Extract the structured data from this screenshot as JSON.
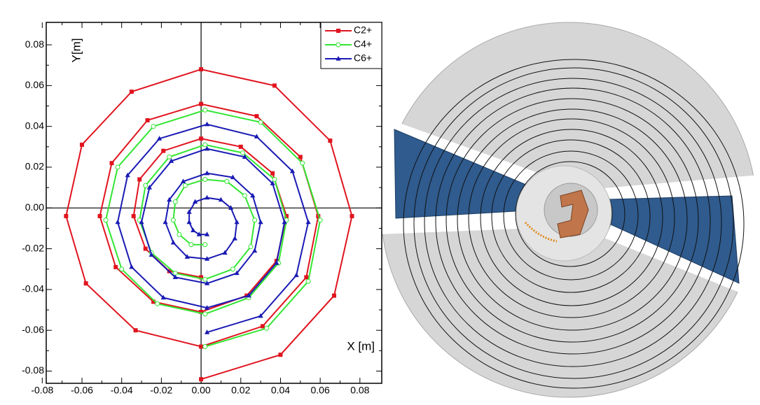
{
  "chart_data": {
    "type": "line",
    "x_label": "X [m]",
    "y_label": "Y[m]",
    "xlim": [
      -0.078,
      0.091
    ],
    "ylim": [
      -0.086,
      0.091
    ],
    "xticks": [
      -0.08,
      -0.06,
      -0.04,
      -0.02,
      {
        "value": 0,
        "label": "0.00"
      },
      0.02,
      0.04,
      0.06,
      0.08
    ],
    "yticks": [
      -0.08,
      -0.06,
      -0.04,
      -0.02,
      {
        "value": 0,
        "label": "0.00"
      },
      0.02,
      0.04,
      0.06,
      0.08
    ],
    "legend": "upper right",
    "series": [
      {
        "name": "C2+",
        "color": "#e0141e",
        "marker": "square",
        "x": [
          0,
          -0.016,
          -0.028,
          -0.034,
          -0.031,
          -0.019,
          0,
          0.02,
          0.036,
          0.043,
          0.038,
          0.023,
          0,
          -0.024,
          -0.043,
          -0.051,
          -0.045,
          -0.027,
          0,
          0.028,
          0.05,
          0.059,
          0.053,
          0.031,
          0,
          -0.033,
          -0.058,
          -0.068,
          -0.06,
          -0.035,
          0,
          0.037,
          0.065,
          0.076,
          0.067,
          0.04,
          0
        ],
        "y": [
          -0.034,
          -0.031,
          -0.02,
          -0.004,
          0.014,
          0.028,
          0.034,
          0.03,
          0.017,
          -0.004,
          -0.026,
          -0.043,
          -0.051,
          -0.046,
          -0.029,
          -0.004,
          0.022,
          0.043,
          0.051,
          0.045,
          0.025,
          -0.004,
          -0.034,
          -0.058,
          -0.068,
          -0.06,
          -0.037,
          -0.004,
          0.031,
          0.057,
          0.068,
          0.06,
          0.033,
          -0.004,
          -0.043,
          -0.072,
          -0.084
        ]
      },
      {
        "name": "C4+",
        "color": "#33e633",
        "marker": "circle",
        "x": [
          0.002,
          -0.005,
          -0.011,
          -0.014,
          -0.013,
          -0.008,
          0.002,
          0.013,
          0.022,
          0.027,
          0.025,
          0.016,
          0.002,
          -0.013,
          -0.025,
          -0.031,
          -0.028,
          -0.016,
          0.002,
          0.021,
          0.037,
          0.043,
          0.039,
          0.024,
          0.002,
          -0.022,
          -0.04,
          -0.048,
          -0.042,
          -0.024,
          0.002,
          0.03,
          0.051,
          0.06,
          0.054,
          0.033,
          0.002
        ],
        "y": [
          -0.018,
          -0.018,
          -0.013,
          -0.006,
          0.003,
          0.011,
          0.014,
          0.013,
          0.006,
          -0.006,
          -0.019,
          -0.03,
          -0.035,
          -0.032,
          -0.022,
          -0.006,
          0.011,
          0.025,
          0.031,
          0.027,
          0.014,
          -0.006,
          -0.027,
          -0.044,
          -0.052,
          -0.047,
          -0.03,
          -0.006,
          0.02,
          0.04,
          0.048,
          0.042,
          0.022,
          -0.006,
          -0.036,
          -0.059,
          -0.068
        ]
      },
      {
        "name": "C6+",
        "color": "#1a1ab4",
        "marker": "triangle",
        "x": [
          0.003,
          -0.001,
          -0.004,
          -0.006,
          -0.006,
          -0.003,
          0.003,
          0.01,
          0.015,
          0.018,
          0.017,
          0.012,
          0.003,
          -0.007,
          -0.014,
          -0.018,
          -0.016,
          -0.009,
          0.003,
          0.016,
          0.026,
          0.03,
          0.027,
          0.018,
          0.003,
          -0.013,
          -0.025,
          -0.03,
          -0.026,
          -0.015,
          0.003,
          0.022,
          0.036,
          0.042,
          0.038,
          0.024,
          0.003,
          -0.019,
          -0.035,
          -0.042,
          -0.037,
          -0.021,
          0.003,
          0.028,
          0.046,
          0.054,
          0.048,
          0.03,
          0.003
        ],
        "y": [
          -0.013,
          -0.013,
          -0.011,
          -0.007,
          -0.002,
          0.003,
          0.005,
          0.004,
          0.0,
          -0.007,
          -0.015,
          -0.022,
          -0.025,
          -0.024,
          -0.017,
          -0.007,
          0.004,
          0.013,
          0.017,
          0.015,
          0.006,
          -0.007,
          -0.021,
          -0.032,
          -0.037,
          -0.034,
          -0.023,
          -0.007,
          0.01,
          0.023,
          0.029,
          0.025,
          0.012,
          -0.007,
          -0.027,
          -0.043,
          -0.049,
          -0.044,
          -0.029,
          -0.007,
          0.016,
          0.034,
          0.041,
          0.035,
          0.018,
          -0.007,
          -0.033,
          -0.053,
          -0.061
        ]
      }
    ]
  }
}
